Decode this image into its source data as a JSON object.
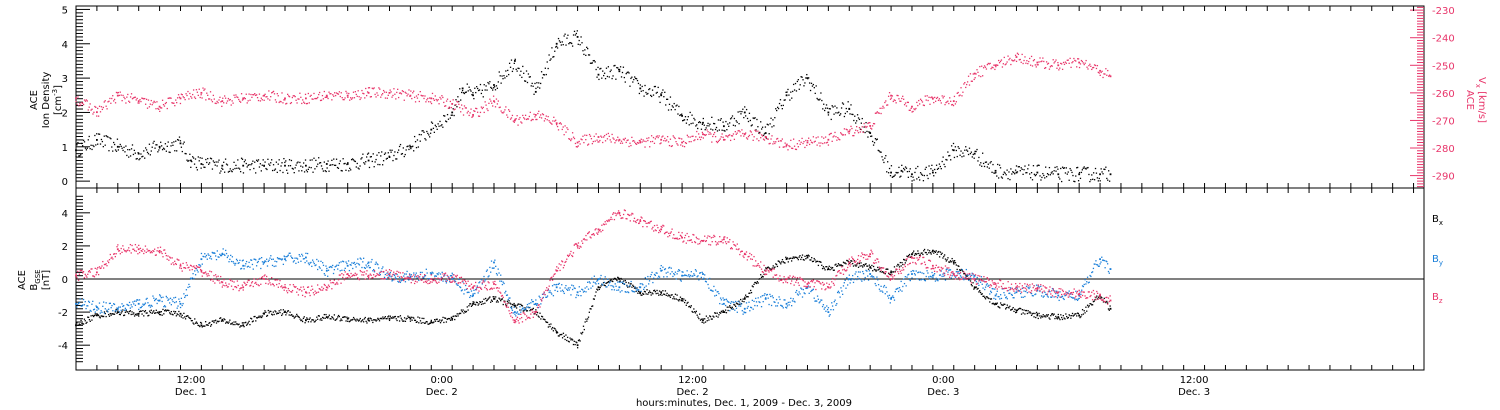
{
  "colors": {
    "black": "#000000",
    "red": "#e8356a",
    "blue": "#1a7fd9",
    "axis": "#000000"
  },
  "xaxis": {
    "title": "hours:minutes, Dec.  1, 2009 - Dec.  3, 2009",
    "range_hours": [
      0,
      64.5
    ],
    "ticks": [
      {
        "time": "12:00",
        "date": "Dec. 1",
        "hour": 5.5
      },
      {
        "time": "0:00",
        "date": "Dec. 2",
        "hour": 17.5
      },
      {
        "time": "12:00",
        "date": "Dec. 2",
        "hour": 29.5
      },
      {
        "time": "0:00",
        "date": "Dec. 3",
        "hour": 41.5
      },
      {
        "time": "12:00",
        "date": "Dec. 3",
        "hour": 53.5
      }
    ]
  },
  "panel1": {
    "left_label": {
      "l1": "ACE",
      "l2": "Ion Density",
      "l3": "[cm",
      "l3sup": "-3",
      "l3end": "]"
    },
    "right_label": {
      "l1": "ACE",
      "l2": "V",
      "l2sub": "x",
      "l2end": " [km/s]"
    },
    "left_ticks": [
      "0",
      "1",
      "2",
      "3",
      "4",
      "5"
    ],
    "right_ticks": [
      "-230",
      "-240",
      "-250",
      "-260",
      "-270",
      "-280",
      "-290"
    ]
  },
  "panel2": {
    "left_label": {
      "l1": "ACE",
      "l2": "B",
      "l2sub": "GSE",
      "l3": "[nT]"
    },
    "left_ticks": [
      "4",
      "2",
      "0",
      "-2",
      "-4"
    ],
    "legend": [
      {
        "name": "B",
        "sub": "x",
        "color": "#000000"
      },
      {
        "name": "B",
        "sub": "y",
        "color": "#1a7fd9"
      },
      {
        "name": "B",
        "sub": "z",
        "color": "#e8356a"
      }
    ]
  },
  "chart_data": [
    {
      "type": "scatter",
      "title": "",
      "xlabel": "hours:minutes, Dec.  1, 2009 - Dec.  3, 2009",
      "ylabel": "ACE Ion Density [cm^-3]",
      "y2label": "ACE Vx [km/s]",
      "ylim": [
        -0.2,
        5.1
      ],
      "y2lim": [
        -294.5,
        -228.5
      ],
      "series": [
        {
          "name": "Ion Density",
          "axis": "left",
          "color": "#000000",
          "x": [
            0,
            1,
            2,
            3,
            4,
            5,
            5.5,
            6,
            7,
            8,
            9,
            10,
            11,
            12,
            13,
            14,
            15,
            16,
            17,
            18,
            18.5,
            19,
            20,
            21,
            22,
            23,
            24,
            25,
            26,
            27,
            28,
            29,
            30,
            31,
            32,
            33,
            34,
            35,
            36,
            37,
            38,
            39,
            39.5,
            40,
            41,
            42,
            43,
            44,
            45,
            46,
            47,
            48,
            49,
            49.5
          ],
          "y": [
            0.9,
            1.2,
            1.0,
            0.8,
            1.0,
            1.1,
            0.6,
            0.5,
            0.45,
            0.45,
            0.45,
            0.45,
            0.45,
            0.5,
            0.5,
            0.6,
            0.7,
            1.0,
            1.5,
            2.0,
            2.7,
            2.5,
            2.8,
            3.5,
            2.6,
            4.0,
            4.2,
            3.1,
            3.2,
            2.7,
            2.5,
            1.9,
            1.7,
            1.6,
            2.0,
            1.4,
            2.5,
            3.0,
            2.0,
            2.1,
            1.4,
            0.25,
            0.3,
            0.2,
            0.25,
            0.9,
            0.8,
            0.3,
            0.25,
            0.25,
            0.2,
            0.2,
            0.2,
            0.2
          ]
        },
        {
          "name": "Vx",
          "axis": "right",
          "color": "#e8356a",
          "x": [
            0,
            1,
            2,
            3,
            4,
            5,
            6,
            7,
            8,
            9,
            10,
            11,
            12,
            13,
            14,
            15,
            16,
            17,
            18,
            19,
            20,
            21,
            22,
            23,
            24,
            25,
            26,
            27,
            28,
            29,
            30,
            31,
            32,
            33,
            34,
            35,
            36,
            37,
            38,
            39,
            40,
            41,
            42,
            43,
            44,
            45,
            46,
            47,
            48,
            49,
            49.5
          ],
          "y": [
            -262,
            -267,
            -261,
            -263,
            -265,
            -262,
            -260,
            -263,
            -262,
            -261,
            -262,
            -262,
            -261,
            -261,
            -260,
            -260,
            -261,
            -262,
            -264,
            -268,
            -263,
            -270,
            -268,
            -271,
            -278,
            -276,
            -277,
            -278,
            -277,
            -278,
            -275,
            -277,
            -275,
            -276,
            -279,
            -278,
            -277,
            -274,
            -272,
            -261,
            -265,
            -262,
            -263,
            -253,
            -250,
            -247,
            -249,
            -250,
            -249,
            -252,
            -254
          ]
        }
      ]
    },
    {
      "type": "scatter",
      "title": "",
      "xlabel": "hours:minutes, Dec.  1, 2009 - Dec.  3, 2009",
      "ylabel": "ACE B GSE [nT]",
      "ylim": [
        -5.5,
        5.5
      ],
      "series": [
        {
          "name": "Bx",
          "color": "#000000",
          "x": [
            0,
            1,
            2,
            3,
            4,
            5,
            6,
            7,
            8,
            9,
            10,
            11,
            12,
            13,
            14,
            15,
            16,
            17,
            18,
            19,
            20,
            21,
            22,
            23,
            24,
            25,
            26,
            27,
            28,
            29,
            30,
            31,
            32,
            33,
            34,
            35,
            36,
            37,
            38,
            39,
            40,
            41,
            42,
            43,
            44,
            45,
            46,
            47,
            48,
            49,
            49.5
          ],
          "y": [
            -2.8,
            -2.2,
            -2.0,
            -2.1,
            -2.0,
            -2.1,
            -2.8,
            -2.5,
            -2.8,
            -2.1,
            -2.0,
            -2.5,
            -2.3,
            -2.4,
            -2.5,
            -2.4,
            -2.4,
            -2.6,
            -2.4,
            -1.5,
            -1.2,
            -1.6,
            -2.0,
            -3.2,
            -4.0,
            -0.5,
            0.0,
            -0.8,
            -0.8,
            -1.2,
            -2.5,
            -2.0,
            -1.2,
            0.5,
            1.2,
            1.3,
            0.6,
            1.0,
            0.7,
            0.4,
            1.5,
            1.7,
            1.0,
            -0.5,
            -1.5,
            -1.9,
            -2.2,
            -2.3,
            -2.2,
            -1.0,
            -1.8
          ]
        },
        {
          "name": "By",
          "color": "#1a7fd9",
          "x": [
            0,
            1,
            2,
            3,
            4,
            5,
            6,
            7,
            8,
            9,
            10,
            11,
            12,
            13,
            14,
            15,
            16,
            17,
            18,
            19,
            20,
            21,
            22,
            23,
            24,
            25,
            26,
            27,
            28,
            29,
            30,
            31,
            32,
            33,
            34,
            35,
            36,
            37,
            38,
            39,
            40,
            41,
            42,
            43,
            44,
            45,
            46,
            47,
            48,
            49,
            49.5
          ],
          "y": [
            -1.5,
            -1.7,
            -1.8,
            -1.5,
            -1.3,
            -1.5,
            1.2,
            1.5,
            0.8,
            1.0,
            1.2,
            1.3,
            0.5,
            0.8,
            1.0,
            0.2,
            0.1,
            0.3,
            0.0,
            -1.0,
            1.0,
            -2.0,
            -1.5,
            -0.5,
            -0.8,
            0.0,
            -0.5,
            -0.5,
            0.5,
            0.2,
            0.3,
            -1.5,
            -1.8,
            -1.2,
            -1.5,
            -0.5,
            -2.0,
            0.0,
            0.3,
            -1.2,
            0.3,
            0.2,
            0.3,
            0.2,
            -1.0,
            -0.8,
            -0.7,
            -1.0,
            -1.0,
            1.2,
            0.6
          ]
        },
        {
          "name": "Bz",
          "color": "#e8356a",
          "x": [
            0,
            1,
            2,
            3,
            4,
            5,
            6,
            7,
            8,
            9,
            10,
            11,
            12,
            13,
            14,
            15,
            16,
            17,
            18,
            19,
            20,
            21,
            22,
            23,
            24,
            25,
            26,
            27,
            28,
            29,
            30,
            31,
            32,
            33,
            34,
            35,
            36,
            37,
            38,
            39,
            40,
            41,
            42,
            43,
            44,
            45,
            46,
            47,
            48,
            49,
            49.5
          ],
          "y": [
            0.2,
            0.4,
            1.8,
            1.8,
            1.7,
            0.8,
            0.5,
            -0.2,
            -0.5,
            0.0,
            -0.5,
            -0.8,
            -0.5,
            0.3,
            0.2,
            0.3,
            0.0,
            0.0,
            0.1,
            -0.5,
            -0.3,
            -2.5,
            -2.0,
            0.5,
            2.0,
            3.0,
            4.0,
            3.5,
            3.0,
            2.5,
            2.3,
            2.4,
            1.5,
            0.5,
            0.0,
            -0.3,
            -0.5,
            1.0,
            1.5,
            0.0,
            1.3,
            0.8,
            0.3,
            0.0,
            -0.3,
            -0.5,
            -0.6,
            -0.8,
            -0.9,
            -1.0,
            -1.3
          ]
        }
      ]
    }
  ]
}
